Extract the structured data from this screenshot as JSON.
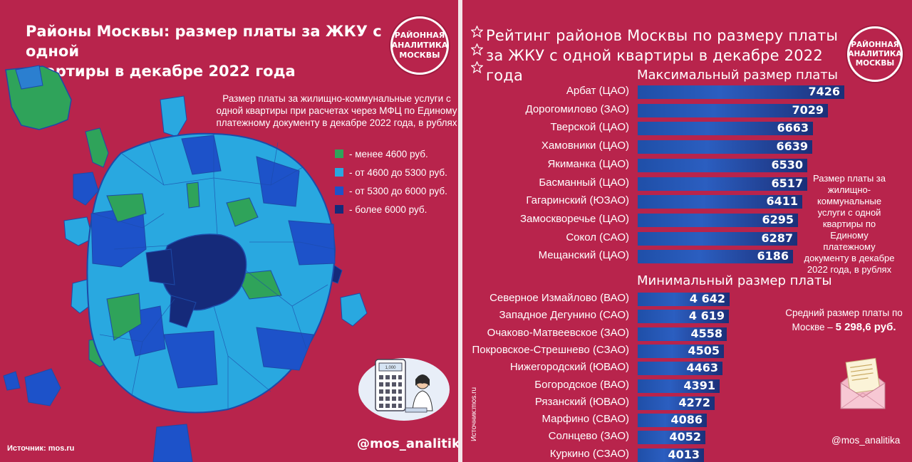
{
  "left": {
    "title_line1": "Районы Москвы: размер платы за ЖКУ с одной",
    "title_line2": "квартиры в декабре 2022 года",
    "logo_lines": [
      "РАЙОННАЯ",
      "АНАЛИТИКА",
      "МОСКВЫ"
    ],
    "legend_description": "Размер платы за жилищно-коммунальные услуги с одной квартиры при расчетах через МФЦ по Единому платежному документу в декабре 2022 года, в рублях",
    "legend": [
      {
        "label": "- менее 4600 руб.",
        "color": "#2fa35a"
      },
      {
        "label": "- от 4600 до 5300 руб.",
        "color": "#29a8e0"
      },
      {
        "label": "- от 5300 до 6000 руб.",
        "color": "#1d52c9"
      },
      {
        "label": "- более 6000 руб.",
        "color": "#152a7a"
      }
    ],
    "source": "Источник: mos.ru",
    "handle": "@mos_analitika",
    "calc_display": "1,000"
  },
  "right": {
    "title_line1": "Рейтинг районов Москвы по размеру платы",
    "title_line2": "за ЖКУ с одной квартиры в декабре 2022 года",
    "logo_lines": [
      "РАЙОННАЯ",
      "АНАЛИТИКА",
      "МОСКВЫ"
    ],
    "max_heading": "Максимальный размер платы",
    "min_heading": "Минимальный размер платы",
    "note": "Размер платы за жилищно-коммунальные услуги с одной квартиры по Единому платежному документу в декабре 2022 года, в рублях",
    "avg_label": "Средний размер платы по Москве –",
    "avg_value": "5 298,6 руб.",
    "source": "Источник:mos.ru",
    "handle": "@mos_analitika"
  },
  "chart_data": [
    {
      "type": "bar",
      "title": "Максимальный размер платы",
      "categories": [
        "Арбат (ЦАО)",
        "Дорогомилово (ЗАО)",
        "Тверской (ЦАО)",
        "Хамовники (ЦАО)",
        "Якиманка (ЦАО)",
        "Басманный (ЦАО)",
        "Гагаринский (ЮЗАО)",
        "Замоскворечье (ЦАО)",
        "Сокол (САО)",
        "Мещанский (ЦАО)"
      ],
      "values": [
        7426,
        7029,
        6663,
        6639,
        6530,
        6517,
        6411,
        6295,
        6287,
        6186
      ],
      "labels": [
        "7426",
        "7029",
        "6663",
        "6639",
        "6530",
        "6517",
        "6411",
        "6295",
        "6287",
        "6186"
      ],
      "orientation": "horizontal"
    },
    {
      "type": "bar",
      "title": "Минимальный размер платы",
      "categories": [
        "Северное Измайлово (ВАО)",
        "Западное Дегунино (САО)",
        "Очаково-Матвеевское (ЗАО)",
        "Покровское-Стрешнево (СЗАО)",
        "Нижегородский (ЮВАО)",
        "Богородское (ВАО)",
        "Рязанский (ЮВАО)",
        "Марфино (СВАО)",
        "Солнцево (ЗАО)",
        "Куркино (СЗАО)"
      ],
      "values": [
        4642,
        4619,
        4558,
        4505,
        4463,
        4391,
        4272,
        4086,
        4052,
        4013
      ],
      "labels": [
        "4 642",
        "4 619",
        "4558",
        "4505",
        "4463",
        "4391",
        "4272",
        "4086",
        "4052",
        "4013"
      ],
      "orientation": "horizontal"
    }
  ]
}
